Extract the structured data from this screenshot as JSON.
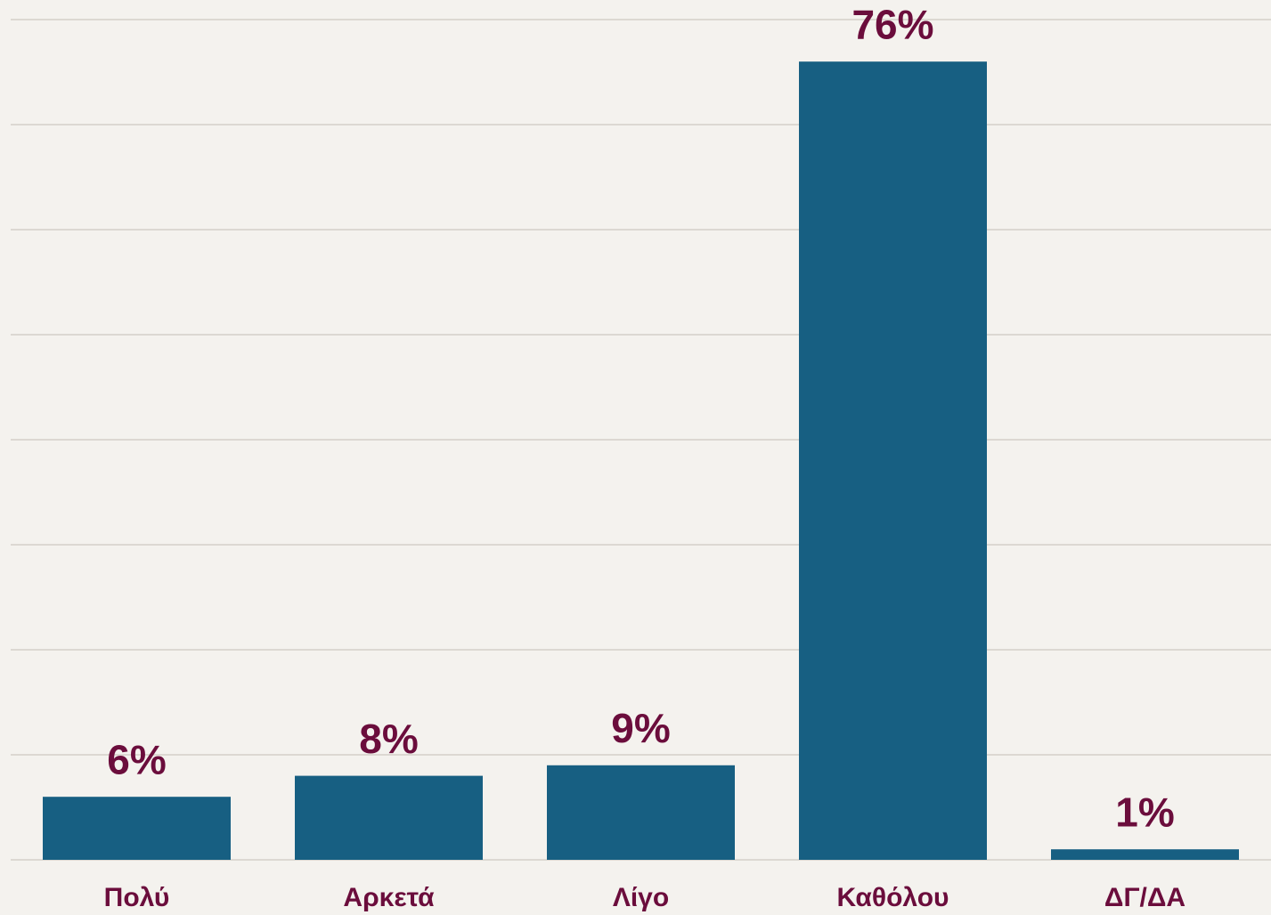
{
  "chart_data": {
    "type": "bar",
    "categories": [
      "Πολύ",
      "Αρκετά",
      "Λίγο",
      "Καθόλου",
      "ΔΓ/ΔΑ"
    ],
    "values": [
      6,
      8,
      9,
      76,
      1
    ],
    "value_labels": [
      "6%",
      "8%",
      "9%",
      "76%",
      "1%"
    ],
    "color": "#175f82",
    "label_color": "#6b0d3c",
    "ylim": [
      0,
      80
    ],
    "yticks": [
      0,
      10,
      20,
      30,
      40,
      50,
      60,
      70,
      80
    ],
    "grid": true
  }
}
